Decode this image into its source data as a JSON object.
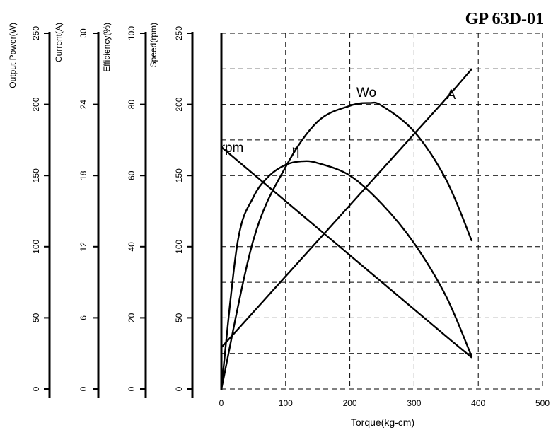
{
  "chart_data": {
    "type": "line",
    "title": "GP 63D-01",
    "xlabel": "Torque(kg-cm)",
    "xlim": [
      0,
      500
    ],
    "x_ticks": [
      0,
      100,
      200,
      300,
      400,
      500
    ],
    "y_axes": [
      {
        "label": "Output Power(W)",
        "ticks": [
          0,
          50,
          100,
          150,
          200,
          250
        ]
      },
      {
        "label": "Current(A)",
        "ticks": [
          0,
          6,
          12,
          18,
          24,
          30
        ]
      },
      {
        "label": "Efficiency(%)",
        "ticks": [
          0,
          20,
          40,
          60,
          80,
          100
        ]
      },
      {
        "label": "Speed(rpm)",
        "ticks": [
          0,
          50,
          100,
          150,
          200,
          250
        ]
      }
    ],
    "grid": true,
    "series": [
      {
        "name": "rpm",
        "axis": "Speed(rpm)",
        "x": [
          0,
          50,
          100,
          150,
          200,
          250,
          300,
          350,
          390
        ],
        "y": [
          170,
          151,
          132,
          113,
          94,
          75,
          56,
          37,
          22
        ]
      },
      {
        "name": "η",
        "axis": "Efficiency(%)",
        "x": [
          0,
          25,
          50,
          75,
          100,
          125,
          150,
          200,
          250,
          300,
          350,
          390
        ],
        "y": [
          0,
          41,
          54,
          60,
          63,
          64,
          63.5,
          60,
          52,
          41,
          26,
          9
        ]
      },
      {
        "name": "Wo",
        "axis": "Output Power(W)",
        "x": [
          0,
          50,
          100,
          150,
          200,
          230,
          250,
          300,
          350,
          390
        ],
        "y": [
          0,
          105,
          156,
          188,
          199,
          201,
          199,
          181,
          147,
          104
        ]
      },
      {
        "name": "A",
        "axis": "Current(A)",
        "x": [
          0,
          50,
          100,
          150,
          200,
          250,
          300,
          350,
          390
        ],
        "y": [
          3.5,
          6.5,
          9.5,
          12.5,
          15.5,
          18.5,
          21.5,
          24.5,
          27.0
        ]
      }
    ]
  }
}
